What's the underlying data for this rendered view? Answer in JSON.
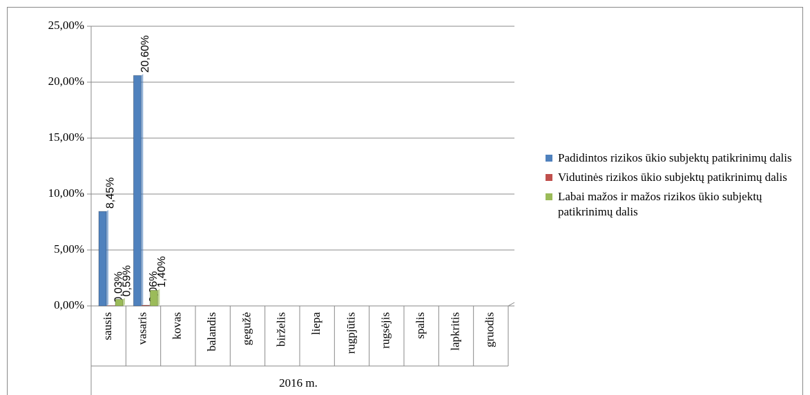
{
  "chart_data": {
    "type": "bar",
    "categories": [
      "sausis",
      "vasaris",
      "kovas",
      "balandis",
      "gegužė",
      "birželis",
      "liepa",
      "rugpjūtis",
      "rugsėjis",
      "spalis",
      "lapkritis",
      "gruodis"
    ],
    "group_label": "2016 m.",
    "series": [
      {
        "name": "Padidintos rizikos ūkio subjektų patikrinimų dalis",
        "color": "#4f81bd",
        "values": [
          8.45,
          20.6,
          null,
          null,
          null,
          null,
          null,
          null,
          null,
          null,
          null,
          null
        ],
        "value_labels": [
          "8,45%",
          "20,60%",
          null,
          null,
          null,
          null,
          null,
          null,
          null,
          null,
          null,
          null
        ]
      },
      {
        "name": "Vidutinės rizikos ūkio subjektų patikrinimų dalis",
        "color": "#c0504d",
        "values": [
          0.03,
          0.06,
          null,
          null,
          null,
          null,
          null,
          null,
          null,
          null,
          null,
          null
        ],
        "value_labels": [
          "0,03%",
          "0,06%",
          null,
          null,
          null,
          null,
          null,
          null,
          null,
          null,
          null,
          null
        ]
      },
      {
        "name": "Labai mažos ir mažos rizikos ūkio subjektų patikrinimų dalis",
        "color": "#9bbb59",
        "values": [
          0.59,
          1.4,
          null,
          null,
          null,
          null,
          null,
          null,
          null,
          null,
          null,
          null
        ],
        "value_labels": [
          "0,59%",
          "1,40%",
          null,
          null,
          null,
          null,
          null,
          null,
          null,
          null,
          null,
          null
        ]
      }
    ],
    "ylim": [
      0,
      25
    ],
    "yticks": [
      {
        "value": 0,
        "label": "0,00%"
      },
      {
        "value": 5,
        "label": "5,00%"
      },
      {
        "value": 10,
        "label": "10,00%"
      },
      {
        "value": 15,
        "label": "15,00%"
      },
      {
        "value": 20,
        "label": "20,00%"
      },
      {
        "value": 25,
        "label": "25,00%"
      }
    ],
    "grid": true,
    "legend": "right"
  }
}
